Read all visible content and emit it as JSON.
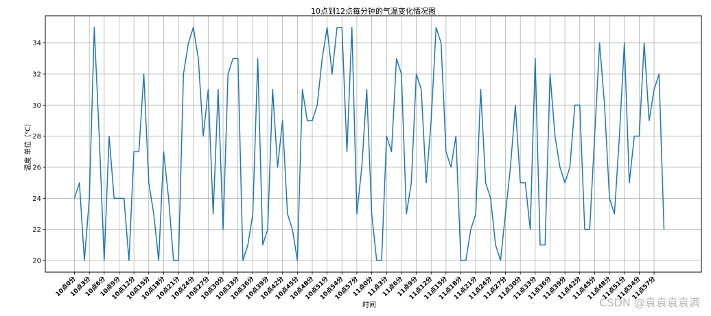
{
  "chart_data": {
    "type": "line",
    "title": "10点到12点每分钟的气温变化情况图",
    "xlabel": "时间",
    "ylabel": "温度 单位（℃）",
    "grid": true,
    "ylim": [
      19.25,
      35.75
    ],
    "yticks": [
      20,
      22,
      24,
      26,
      28,
      30,
      32,
      34
    ],
    "xticklabels": [
      "10点0分",
      "10点3分",
      "10点6分",
      "10点9分",
      "10点12分",
      "10点15分",
      "10点18分",
      "10点21分",
      "10点24分",
      "10点27分",
      "10点30分",
      "10点33分",
      "10点36分",
      "10点39分",
      "10点42分",
      "10点45分",
      "10点48分",
      "10点51分",
      "10点54分",
      "10点57分",
      "11点0分",
      "11点3分",
      "11点6分",
      "11点9分",
      "11点12分",
      "11点15分",
      "11点18分",
      "11点21分",
      "11点24分",
      "11点27分",
      "11点30分",
      "11点33分",
      "11点36分",
      "11点39分",
      "11点42分",
      "11点45分",
      "11点48分",
      "11点51分",
      "11点54分",
      "11点57分"
    ],
    "series": [
      {
        "color": "#1f77b4",
        "values": [
          24,
          25,
          20,
          24,
          35,
          28,
          20,
          28,
          24,
          24,
          24,
          20,
          27,
          27,
          32,
          25,
          23,
          20,
          27,
          24,
          20,
          20,
          32,
          34,
          35,
          33,
          28,
          31,
          23,
          31,
          22,
          32,
          33,
          33,
          20,
          21,
          23,
          33,
          21,
          22,
          31,
          26,
          29,
          23,
          22,
          20,
          31,
          29,
          29,
          30,
          33,
          35,
          32,
          35,
          35,
          27,
          35,
          23,
          26,
          31,
          23,
          20,
          20,
          28,
          27,
          33,
          32,
          23,
          25,
          32,
          31,
          25,
          29,
          35,
          34,
          27,
          26,
          28,
          20,
          20,
          22,
          23,
          31,
          25,
          24,
          21,
          20,
          23,
          26,
          30,
          25,
          25,
          22,
          33,
          21,
          21,
          32,
          28,
          26,
          25,
          26,
          30,
          30,
          22,
          22,
          28,
          34,
          30,
          24,
          23,
          28,
          34,
          25,
          28,
          28,
          34,
          29,
          31,
          32,
          22
        ]
      }
    ]
  },
  "watermark": "CSDN @袁袁袁袁满"
}
